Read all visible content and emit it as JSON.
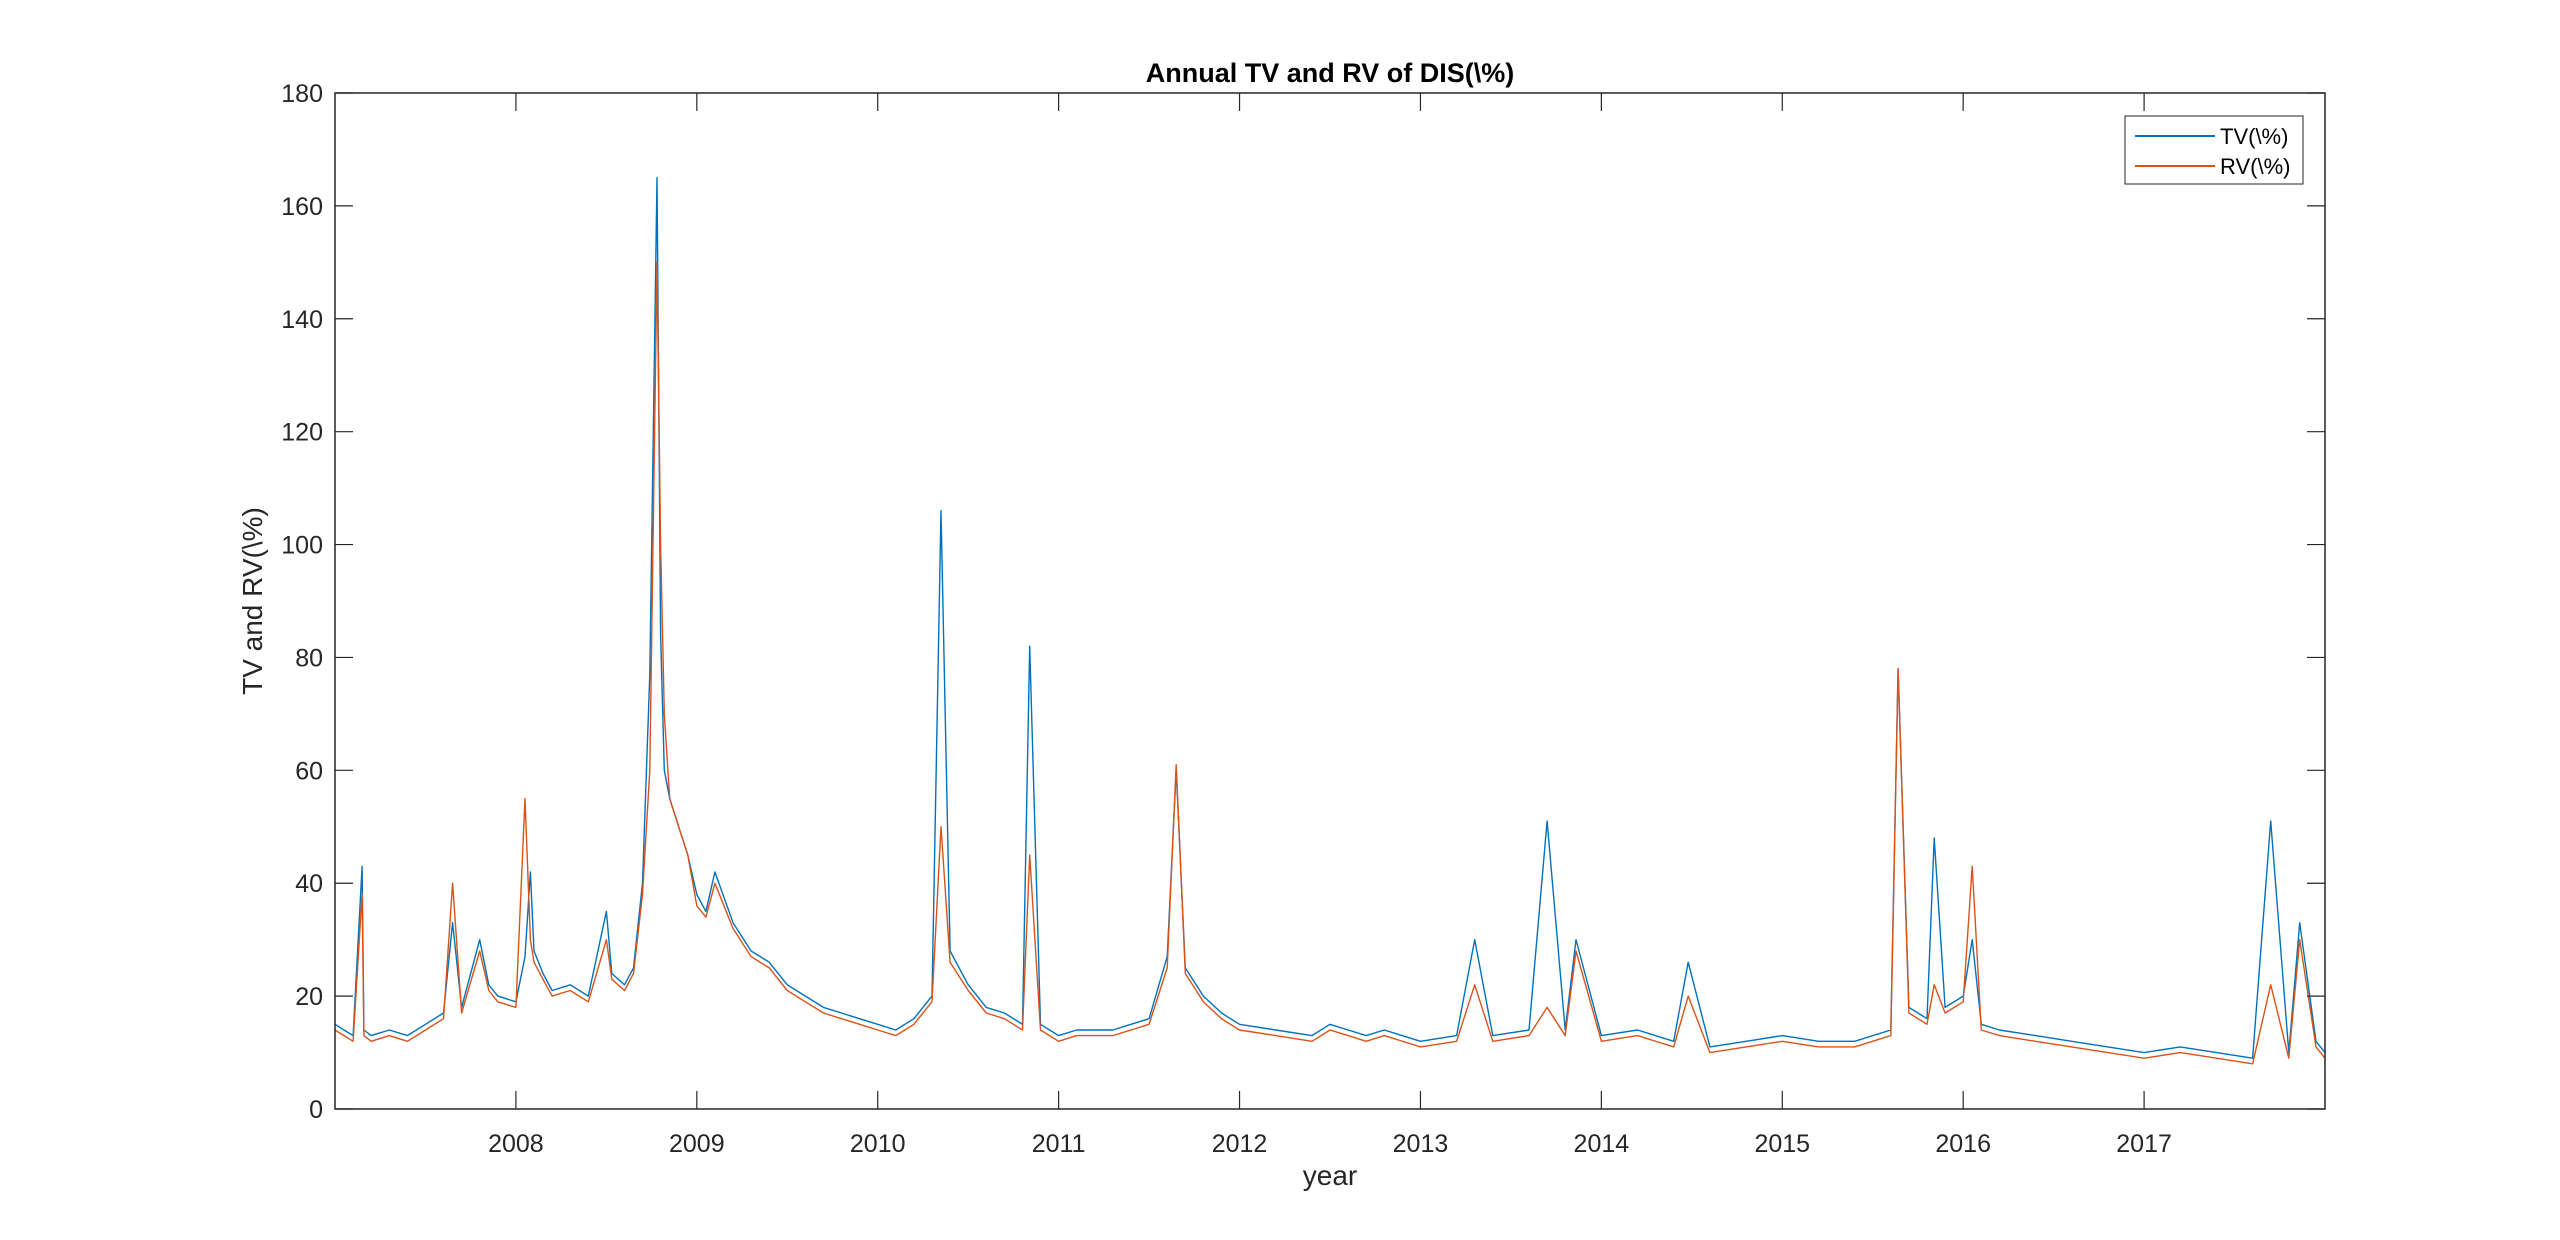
{
  "chart_data": {
    "type": "line",
    "title": "Annual TV and RV of DIS(\\%)",
    "xlabel": "year",
    "ylabel": "TV and RV(\\%)",
    "xlim": [
      2007.0,
      2018.0
    ],
    "ylim": [
      0,
      180
    ],
    "x_ticks": [
      2008,
      2009,
      2010,
      2011,
      2012,
      2013,
      2014,
      2015,
      2016,
      2017
    ],
    "x_tick_labels": [
      "2008",
      "2009",
      "2010",
      "2011",
      "2012",
      "2013",
      "2014",
      "2015",
      "2016",
      "2017"
    ],
    "y_ticks": [
      0,
      20,
      40,
      60,
      80,
      100,
      120,
      140,
      160,
      180
    ],
    "y_tick_labels": [
      "0",
      "20",
      "40",
      "60",
      "80",
      "100",
      "120",
      "140",
      "160",
      "180"
    ],
    "grid": false,
    "legend_position": "top-right",
    "colors": {
      "TV": "#0072BD",
      "RV": "#D95319"
    },
    "series": [
      {
        "name": "TV(\\%)",
        "color": "#0072BD",
        "x": [
          2007.0,
          2007.05,
          2007.1,
          2007.15,
          2007.16,
          2007.2,
          2007.3,
          2007.4,
          2007.5,
          2007.6,
          2007.65,
          2007.7,
          2007.8,
          2007.85,
          2007.9,
          2008.0,
          2008.05,
          2008.08,
          2008.1,
          2008.15,
          2008.2,
          2008.3,
          2008.4,
          2008.5,
          2008.53,
          2008.6,
          2008.65,
          2008.7,
          2008.74,
          2008.78,
          2008.8,
          2008.82,
          2008.85,
          2008.9,
          2008.95,
          2009.0,
          2009.05,
          2009.1,
          2009.2,
          2009.3,
          2009.4,
          2009.5,
          2009.6,
          2009.7,
          2009.8,
          2009.9,
          2010.0,
          2010.1,
          2010.2,
          2010.3,
          2010.35,
          2010.4,
          2010.5,
          2010.6,
          2010.7,
          2010.8,
          2010.84,
          2010.9,
          2011.0,
          2011.1,
          2011.2,
          2011.3,
          2011.4,
          2011.5,
          2011.6,
          2011.65,
          2011.7,
          2011.8,
          2011.9,
          2012.0,
          2012.2,
          2012.4,
          2012.5,
          2012.6,
          2012.7,
          2012.8,
          2013.0,
          2013.2,
          2013.3,
          2013.4,
          2013.6,
          2013.7,
          2013.8,
          2013.86,
          2014.0,
          2014.2,
          2014.4,
          2014.48,
          2014.6,
          2014.8,
          2015.0,
          2015.2,
          2015.4,
          2015.6,
          2015.64,
          2015.7,
          2015.8,
          2015.84,
          2015.9,
          2016.0,
          2016.05,
          2016.1,
          2016.2,
          2016.4,
          2016.6,
          2016.8,
          2017.0,
          2017.2,
          2017.4,
          2017.6,
          2017.7,
          2017.8,
          2017.86,
          2017.95,
          2018.0
        ],
        "values": [
          15,
          14,
          13,
          43,
          14,
          13,
          14,
          13,
          15,
          17,
          33,
          18,
          30,
          22,
          20,
          19,
          27,
          42,
          28,
          24,
          21,
          22,
          20,
          35,
          24,
          22,
          25,
          40,
          77,
          165,
          84,
          60,
          55,
          50,
          45,
          38,
          35,
          42,
          33,
          28,
          26,
          22,
          20,
          18,
          17,
          16,
          15,
          14,
          16,
          20,
          106,
          28,
          22,
          18,
          17,
          15,
          82,
          15,
          13,
          14,
          14,
          14,
          15,
          16,
          27,
          60,
          25,
          20,
          17,
          15,
          14,
          13,
          15,
          14,
          13,
          14,
          12,
          13,
          30,
          13,
          14,
          51,
          14,
          30,
          13,
          14,
          12,
          26,
          11,
          12,
          13,
          12,
          12,
          14,
          78,
          18,
          16,
          48,
          18,
          20,
          30,
          15,
          14,
          13,
          12,
          11,
          10,
          11,
          10,
          9,
          51,
          10,
          33,
          12,
          10
        ]
      },
      {
        "name": "RV(\\%)",
        "color": "#D95319",
        "x": [
          2007.0,
          2007.05,
          2007.1,
          2007.15,
          2007.16,
          2007.2,
          2007.3,
          2007.4,
          2007.5,
          2007.6,
          2007.65,
          2007.7,
          2007.8,
          2007.85,
          2007.9,
          2008.0,
          2008.05,
          2008.08,
          2008.1,
          2008.15,
          2008.2,
          2008.3,
          2008.4,
          2008.5,
          2008.53,
          2008.6,
          2008.65,
          2008.7,
          2008.74,
          2008.78,
          2008.8,
          2008.82,
          2008.85,
          2008.9,
          2008.95,
          2009.0,
          2009.05,
          2009.1,
          2009.2,
          2009.3,
          2009.4,
          2009.5,
          2009.6,
          2009.7,
          2009.8,
          2009.9,
          2010.0,
          2010.1,
          2010.2,
          2010.3,
          2010.35,
          2010.4,
          2010.5,
          2010.6,
          2010.7,
          2010.8,
          2010.84,
          2010.9,
          2011.0,
          2011.1,
          2011.2,
          2011.3,
          2011.4,
          2011.5,
          2011.6,
          2011.65,
          2011.7,
          2011.8,
          2011.9,
          2012.0,
          2012.2,
          2012.4,
          2012.5,
          2012.6,
          2012.7,
          2012.8,
          2013.0,
          2013.2,
          2013.3,
          2013.4,
          2013.6,
          2013.7,
          2013.8,
          2013.86,
          2014.0,
          2014.2,
          2014.4,
          2014.48,
          2014.6,
          2014.8,
          2015.0,
          2015.2,
          2015.4,
          2015.6,
          2015.64,
          2015.7,
          2015.8,
          2015.84,
          2015.9,
          2016.0,
          2016.05,
          2016.1,
          2016.2,
          2016.4,
          2016.6,
          2016.8,
          2017.0,
          2017.2,
          2017.4,
          2017.6,
          2017.7,
          2017.8,
          2017.86,
          2017.95,
          2018.0
        ],
        "values": [
          14,
          13,
          12,
          38,
          13,
          12,
          13,
          12,
          14,
          16,
          40,
          17,
          28,
          21,
          19,
          18,
          55,
          30,
          26,
          23,
          20,
          21,
          19,
          30,
          23,
          21,
          24,
          38,
          60,
          150,
          100,
          70,
          55,
          50,
          45,
          36,
          34,
          40,
          32,
          27,
          25,
          21,
          19,
          17,
          16,
          15,
          14,
          13,
          15,
          19,
          50,
          26,
          21,
          17,
          16,
          14,
          45,
          14,
          12,
          13,
          13,
          13,
          14,
          15,
          25,
          61,
          24,
          19,
          16,
          14,
          13,
          12,
          14,
          13,
          12,
          13,
          11,
          12,
          22,
          12,
          13,
          18,
          13,
          28,
          12,
          13,
          11,
          20,
          10,
          11,
          12,
          11,
          11,
          13,
          78,
          17,
          15,
          22,
          17,
          19,
          43,
          14,
          13,
          12,
          11,
          10,
          9,
          10,
          9,
          8,
          22,
          9,
          30,
          11,
          9
        ]
      }
    ]
  }
}
